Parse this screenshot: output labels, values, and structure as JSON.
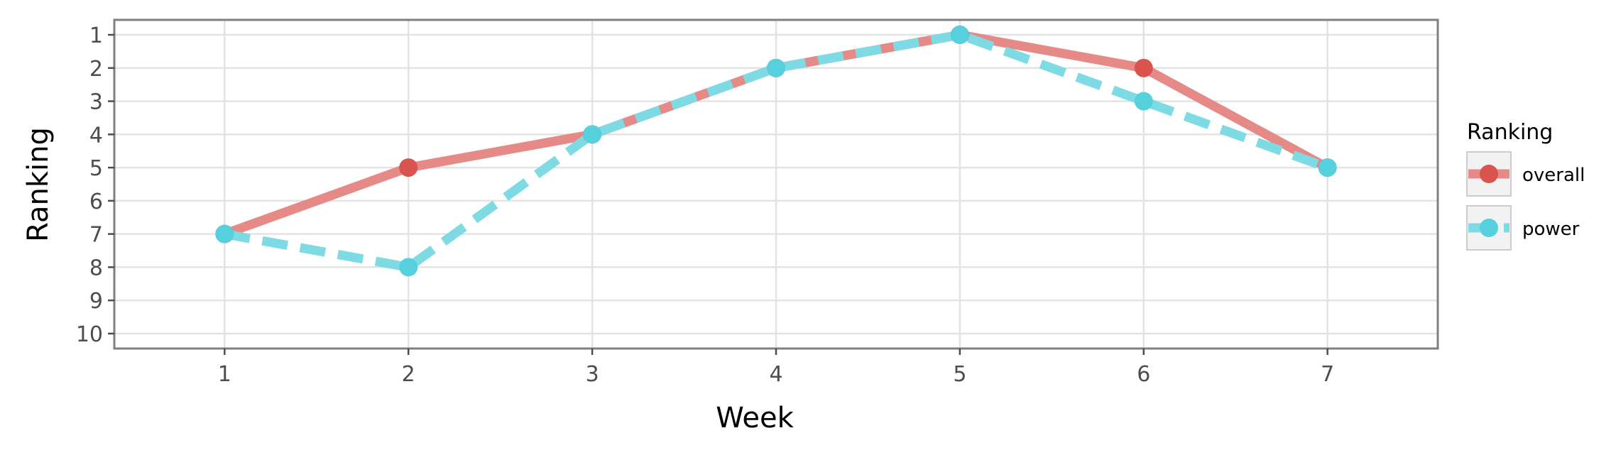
{
  "chart_data": {
    "type": "line",
    "xlabel": "Week",
    "ylabel": "Ranking",
    "x": [
      1,
      2,
      3,
      4,
      5,
      6,
      7
    ],
    "xlim": [
      0.4,
      7.6
    ],
    "ylim": [
      10.45,
      0.55
    ],
    "y_reversed": true,
    "xticks": [
      1,
      2,
      3,
      4,
      5,
      6,
      7
    ],
    "yticks": [
      1,
      2,
      3,
      4,
      5,
      6,
      7,
      8,
      9,
      10
    ],
    "grid": true,
    "legend": {
      "title": "Ranking",
      "placement": "right"
    },
    "series": [
      {
        "name": "overall",
        "values": [
          7,
          5,
          4,
          2,
          1,
          2,
          5
        ],
        "line_color": "#e58a86",
        "point_color": "#d9534f",
        "line_style": "solid"
      },
      {
        "name": "power",
        "values": [
          7,
          8,
          4,
          2,
          1,
          3,
          5
        ],
        "line_color": "#7fdbe3",
        "point_color": "#55d0dc",
        "line_style": "dashed"
      }
    ]
  }
}
